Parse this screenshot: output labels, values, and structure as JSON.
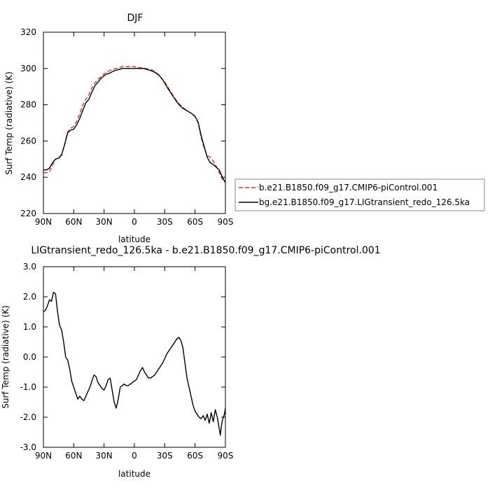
{
  "chart_data": [
    {
      "type": "line",
      "title": "DJF",
      "xlabel": "latitude",
      "ylabel": "Surf Temp (radiative) (K)",
      "xlim": [
        90,
        -90
      ],
      "ylim": [
        220,
        320
      ],
      "x_ticks": [
        90,
        60,
        30,
        0,
        -30,
        -60,
        -90
      ],
      "x_tick_labels": [
        "90N",
        "60N",
        "30N",
        "0",
        "30S",
        "60S",
        "90S"
      ],
      "y_ticks": [
        220,
        240,
        260,
        280,
        300,
        320
      ],
      "y_tick_labels": [
        "220",
        "240",
        "260",
        "280",
        "300",
        "320"
      ],
      "legend_position": "right",
      "series": [
        {
          "name": "b.e21.B1850.f09_g17.CMIP6-piControl.001",
          "color": "#e0302a",
          "dash": "dashed",
          "x": [
            90,
            87,
            84,
            81,
            78,
            75,
            72,
            69,
            66,
            63,
            60,
            57,
            54,
            51,
            48,
            45,
            42,
            39,
            36,
            33,
            30,
            27,
            24,
            21,
            18,
            15,
            12,
            9,
            6,
            3,
            0,
            -3,
            -6,
            -9,
            -12,
            -15,
            -18,
            -21,
            -24,
            -27,
            -30,
            -33,
            -36,
            -39,
            -42,
            -45,
            -48,
            -51,
            -54,
            -57,
            -60,
            -63,
            -66,
            -69,
            -72,
            -75,
            -78,
            -81,
            -84,
            -87,
            -90
          ],
          "y": [
            242.5,
            242.5,
            243.0,
            246.5,
            250.0,
            250.5,
            252.0,
            258.0,
            265.0,
            267.0,
            268.0,
            271.0,
            275.0,
            280.0,
            283.0,
            285.5,
            289.5,
            292.0,
            294.0,
            295.5,
            297.0,
            298.0,
            299.0,
            299.5,
            300.0,
            300.5,
            301.0,
            301.0,
            301.0,
            301.0,
            301.0,
            300.5,
            300.5,
            300.0,
            300.0,
            299.5,
            299.0,
            298.0,
            296.5,
            294.5,
            292.5,
            290.0,
            287.0,
            284.5,
            282.0,
            280.0,
            278.5,
            277.0,
            276.0,
            275.0,
            273.5,
            270.0,
            262.0,
            256.0,
            252.0,
            251.0,
            249.0,
            246.0,
            242.5,
            239.0,
            238.0
          ]
        },
        {
          "name": "bg.e21.B1850.f09_g17.LIGtransient_redo_126.5ka",
          "color": "#000000",
          "dash": "solid",
          "x": [
            90,
            87,
            84,
            81,
            78,
            75,
            72,
            69,
            66,
            63,
            60,
            57,
            54,
            51,
            48,
            45,
            42,
            39,
            36,
            33,
            30,
            27,
            24,
            21,
            18,
            15,
            12,
            9,
            6,
            3,
            0,
            -3,
            -6,
            -9,
            -12,
            -15,
            -18,
            -21,
            -24,
            -27,
            -30,
            -33,
            -36,
            -39,
            -42,
            -45,
            -48,
            -51,
            -54,
            -57,
            -60,
            -63,
            -66,
            -69,
            -72,
            -75,
            -78,
            -81,
            -84,
            -87,
            -90
          ],
          "y": [
            244.0,
            244.0,
            245.0,
            248.0,
            250.0,
            250.5,
            252.5,
            258.0,
            264.5,
            266.0,
            266.5,
            269.0,
            272.5,
            277.0,
            281.0,
            283.0,
            287.0,
            290.5,
            292.5,
            294.5,
            296.0,
            297.0,
            297.5,
            298.5,
            299.0,
            299.5,
            300.0,
            300.0,
            300.0,
            300.0,
            300.0,
            300.0,
            300.0,
            300.0,
            299.5,
            299.0,
            298.5,
            297.5,
            296.5,
            294.5,
            292.0,
            289.0,
            286.5,
            284.0,
            281.5,
            279.5,
            278.0,
            277.0,
            276.0,
            275.0,
            273.5,
            270.5,
            263.0,
            257.0,
            251.0,
            248.0,
            247.0,
            245.5,
            244.0,
            240.0,
            237.0
          ]
        }
      ]
    },
    {
      "type": "line",
      "title": "LIGtransient_redo_126.5ka - b.e21.B1850.f09_g17.CMIP6-piControl.001",
      "xlabel": "latitude",
      "ylabel": "Surf Temp (radiative) (K)",
      "xlim": [
        90,
        -90
      ],
      "ylim": [
        -3,
        3
      ],
      "x_ticks": [
        90,
        60,
        30,
        0,
        -30,
        -60,
        -90
      ],
      "x_tick_labels": [
        "90N",
        "60N",
        "30N",
        "0",
        "30S",
        "60S",
        "90S"
      ],
      "y_ticks": [
        -3,
        -2,
        -1,
        0,
        1,
        2,
        3
      ],
      "y_tick_labels": [
        "-3.0",
        "-2.0",
        "-1.0",
        "0.0",
        "1.0",
        "2.0",
        "3.0"
      ],
      "series": [
        {
          "color": "#000000",
          "dash": "solid",
          "x": [
            90,
            88,
            86,
            84,
            82,
            80,
            78,
            76,
            74,
            72,
            70,
            68,
            66,
            64,
            62,
            60,
            58,
            56,
            54,
            52,
            50,
            48,
            46,
            44,
            42,
            40,
            38,
            36,
            34,
            32,
            30,
            28,
            26,
            24,
            22,
            20,
            18,
            16,
            14,
            12,
            10,
            8,
            6,
            4,
            2,
            0,
            -2,
            -4,
            -6,
            -8,
            -10,
            -12,
            -14,
            -16,
            -18,
            -20,
            -22,
            -24,
            -26,
            -28,
            -30,
            -32,
            -34,
            -36,
            -38,
            -40,
            -42,
            -44,
            -46,
            -48,
            -50,
            -52,
            -54,
            -56,
            -58,
            -60,
            -62,
            -64,
            -66,
            -68,
            -70,
            -72,
            -74,
            -76,
            -78,
            -80,
            -82,
            -84,
            -85,
            -86,
            -87,
            -88,
            -89,
            -90
          ],
          "y": [
            1.5,
            1.55,
            1.7,
            1.9,
            1.85,
            2.15,
            2.1,
            1.5,
            1.05,
            0.9,
            0.5,
            0.0,
            -0.1,
            -0.4,
            -0.8,
            -1.0,
            -1.2,
            -1.4,
            -1.3,
            -1.4,
            -1.45,
            -1.3,
            -1.15,
            -1.0,
            -0.8,
            -0.6,
            -0.65,
            -0.85,
            -0.95,
            -1.05,
            -1.1,
            -0.95,
            -0.75,
            -0.7,
            -1.1,
            -1.5,
            -1.7,
            -1.4,
            -1.0,
            -0.95,
            -0.9,
            -0.95,
            -0.95,
            -0.9,
            -0.85,
            -0.8,
            -0.75,
            -0.6,
            -0.45,
            -0.35,
            -0.5,
            -0.6,
            -0.7,
            -0.7,
            -0.65,
            -0.6,
            -0.5,
            -0.4,
            -0.3,
            -0.2,
            -0.05,
            0.1,
            0.2,
            0.3,
            0.4,
            0.5,
            0.6,
            0.65,
            0.55,
            0.3,
            -0.2,
            -0.7,
            -1.0,
            -1.3,
            -1.6,
            -1.8,
            -1.9,
            -2.0,
            -2.05,
            -1.95,
            -2.1,
            -1.9,
            -2.2,
            -1.85,
            -2.15,
            -1.75,
            -2.0,
            -2.4,
            -2.6,
            -2.3,
            -2.1,
            -2.0,
            -1.9,
            -1.7
          ]
        }
      ]
    }
  ]
}
